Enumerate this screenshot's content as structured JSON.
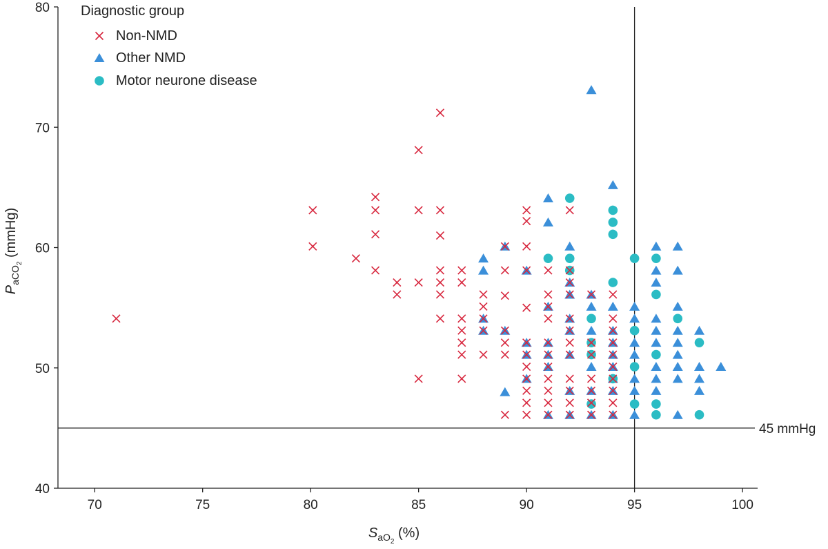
{
  "chart_data": {
    "type": "scatter",
    "title": "",
    "xlabel": {
      "main": "S",
      "sub": "aO",
      "sub2": "2",
      "unit": " (%)"
    },
    "ylabel": {
      "main": "P",
      "sub": "aCO",
      "sub2": "2",
      "unit": " (mmHg)"
    },
    "xlim": [
      68.3,
      100.7
    ],
    "ylim": [
      40,
      80
    ],
    "xticks": [
      70,
      75,
      80,
      85,
      90,
      95,
      100
    ],
    "yticks": [
      40,
      50,
      60,
      70,
      80
    ],
    "grid": false,
    "legend": {
      "title": "Diagnostic group",
      "position": "top-left"
    },
    "reference_lines": [
      {
        "axis": "y",
        "value": 45,
        "label": "45 mmHg"
      },
      {
        "axis": "x",
        "value": 95,
        "label": ""
      }
    ],
    "colors": {
      "non_nmd": "#d7263d",
      "other_nmd": "#3b8fd9",
      "mnd": "#2bbcc4",
      "axis": "#222222"
    },
    "series": [
      {
        "name": "Non-NMD",
        "marker": "x",
        "color": "#d7263d",
        "points": [
          [
            71,
            54.1
          ],
          [
            80.1,
            63.1
          ],
          [
            80.1,
            60.1
          ],
          [
            82.1,
            59.1
          ],
          [
            83,
            64.2
          ],
          [
            83,
            63.1
          ],
          [
            83,
            61.1
          ],
          [
            83,
            58.1
          ],
          [
            84,
            57.1
          ],
          [
            84,
            56.1
          ],
          [
            85,
            68.1
          ],
          [
            85,
            63.1
          ],
          [
            85,
            57.1
          ],
          [
            85,
            49.1
          ],
          [
            86,
            71.2
          ],
          [
            86,
            63.1
          ],
          [
            86,
            61
          ],
          [
            86,
            58.1
          ],
          [
            86,
            57.1
          ],
          [
            86,
            56.1
          ],
          [
            86,
            54.1
          ],
          [
            87,
            58.1
          ],
          [
            87,
            57.1
          ],
          [
            87,
            54.1
          ],
          [
            87,
            53.1
          ],
          [
            87,
            52.1
          ],
          [
            87,
            51.1
          ],
          [
            87,
            49.1
          ],
          [
            88,
            56.1
          ],
          [
            88,
            55.1
          ],
          [
            88,
            54.1
          ],
          [
            88,
            53.1
          ],
          [
            88,
            51.1
          ],
          [
            89,
            60.1
          ],
          [
            89,
            58.1
          ],
          [
            89,
            56
          ],
          [
            89,
            53.1
          ],
          [
            89,
            52.1
          ],
          [
            89,
            51.1
          ],
          [
            89,
            46.1
          ],
          [
            90,
            63.1
          ],
          [
            90,
            62.2
          ],
          [
            90,
            60.1
          ],
          [
            90,
            58.1
          ],
          [
            90,
            55
          ],
          [
            90,
            52.1
          ],
          [
            90,
            51.1
          ],
          [
            90,
            50.1
          ],
          [
            90,
            49.1
          ],
          [
            90,
            48.1
          ],
          [
            90,
            47.1
          ],
          [
            90,
            46.1
          ],
          [
            91,
            58.1
          ],
          [
            91,
            56.1
          ],
          [
            91,
            55.1
          ],
          [
            91,
            54.1
          ],
          [
            91,
            52.1
          ],
          [
            91,
            51.1
          ],
          [
            91,
            50.1
          ],
          [
            91,
            49.1
          ],
          [
            91,
            48.1
          ],
          [
            91,
            47.1
          ],
          [
            91,
            46.1
          ],
          [
            92,
            63.1
          ],
          [
            92,
            58.1
          ],
          [
            92,
            57.1
          ],
          [
            92,
            56.1
          ],
          [
            92,
            54.1
          ],
          [
            92,
            53.1
          ],
          [
            92,
            52.1
          ],
          [
            92,
            51.1
          ],
          [
            92,
            49.1
          ],
          [
            92,
            48.1
          ],
          [
            92,
            47.1
          ],
          [
            92,
            46.1
          ],
          [
            93,
            56.1
          ],
          [
            93,
            52.1
          ],
          [
            93,
            51.1
          ],
          [
            93,
            49.1
          ],
          [
            93,
            48.1
          ],
          [
            93,
            47.1
          ],
          [
            93,
            46.1
          ],
          [
            94,
            56.1
          ],
          [
            94,
            54.1
          ],
          [
            94,
            53.1
          ],
          [
            94,
            52.1
          ],
          [
            94,
            51.1
          ],
          [
            94,
            50.1
          ],
          [
            94,
            49.1
          ],
          [
            94,
            48.1
          ],
          [
            94,
            47.1
          ],
          [
            94,
            46.1
          ]
        ]
      },
      {
        "name": "Other NMD",
        "marker": "triangle",
        "color": "#3b8fd9",
        "points": [
          [
            88,
            59.1
          ],
          [
            88,
            58.1
          ],
          [
            88,
            54.1
          ],
          [
            88,
            53.1
          ],
          [
            89,
            60.1
          ],
          [
            89,
            53.1
          ],
          [
            89,
            48
          ],
          [
            90,
            58.1
          ],
          [
            90,
            52.1
          ],
          [
            90,
            51.1
          ],
          [
            90,
            49.1
          ],
          [
            91,
            64.1
          ],
          [
            91,
            62.1
          ],
          [
            91,
            55.1
          ],
          [
            91,
            52.1
          ],
          [
            91,
            51.1
          ],
          [
            91,
            50.1
          ],
          [
            91,
            46.1
          ],
          [
            92,
            60.1
          ],
          [
            92,
            57.1
          ],
          [
            92,
            56.1
          ],
          [
            92,
            54.1
          ],
          [
            92,
            53.1
          ],
          [
            92,
            51.1
          ],
          [
            92,
            48.1
          ],
          [
            92,
            46.1
          ],
          [
            93,
            73.1
          ],
          [
            93,
            56.1
          ],
          [
            93,
            55.1
          ],
          [
            93,
            53.1
          ],
          [
            93,
            50.1
          ],
          [
            93,
            48.1
          ],
          [
            93,
            46.1
          ],
          [
            94,
            65.2
          ],
          [
            94,
            55.1
          ],
          [
            94,
            53.1
          ],
          [
            94,
            52.1
          ],
          [
            94,
            51.1
          ],
          [
            94,
            50.1
          ],
          [
            94,
            49.1
          ],
          [
            94,
            48.1
          ],
          [
            94,
            46.1
          ],
          [
            95,
            55.1
          ],
          [
            95,
            54.1
          ],
          [
            95,
            52.1
          ],
          [
            95,
            51.1
          ],
          [
            95,
            49.1
          ],
          [
            95,
            48.1
          ],
          [
            95,
            46.1
          ],
          [
            96,
            60.1
          ],
          [
            96,
            58.1
          ],
          [
            96,
            57.1
          ],
          [
            96,
            54.1
          ],
          [
            96,
            53.1
          ],
          [
            96,
            52.1
          ],
          [
            96,
            50.1
          ],
          [
            96,
            49.1
          ],
          [
            96,
            48.1
          ],
          [
            97,
            60.1
          ],
          [
            97,
            58.1
          ],
          [
            97,
            55.1
          ],
          [
            97,
            53.1
          ],
          [
            97,
            52.1
          ],
          [
            97,
            51.1
          ],
          [
            97,
            50.1
          ],
          [
            97,
            49.1
          ],
          [
            97,
            46.1
          ],
          [
            98,
            53.1
          ],
          [
            98,
            50.1
          ],
          [
            98,
            49.1
          ],
          [
            98,
            48.1
          ],
          [
            99,
            50.1
          ]
        ]
      },
      {
        "name": "Motor neurone disease",
        "marker": "circle",
        "color": "#2bbcc4",
        "points": [
          [
            91,
            59.1
          ],
          [
            92,
            64.1
          ],
          [
            92,
            59.1
          ],
          [
            92,
            58.1
          ],
          [
            93,
            54.1
          ],
          [
            93,
            52.1
          ],
          [
            93,
            51.1
          ],
          [
            93,
            47
          ],
          [
            94,
            63.1
          ],
          [
            94,
            62.1
          ],
          [
            94,
            61.1
          ],
          [
            94,
            57.1
          ],
          [
            94,
            49.1
          ],
          [
            95,
            59.1
          ],
          [
            95,
            53.1
          ],
          [
            95,
            50.1
          ],
          [
            95,
            47
          ],
          [
            96,
            59.1
          ],
          [
            96,
            56.1
          ],
          [
            96,
            51.1
          ],
          [
            96,
            47
          ],
          [
            96,
            46.1
          ],
          [
            97,
            54.1
          ],
          [
            98,
            52.1
          ],
          [
            98,
            46.1
          ]
        ]
      }
    ]
  }
}
